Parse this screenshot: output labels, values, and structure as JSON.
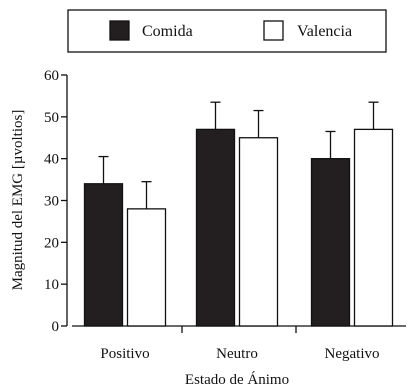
{
  "chart_data": {
    "type": "bar",
    "title": "",
    "xlabel": "Estado de Ánimo",
    "ylabel": "Magnitud del EMG [µvoltios]",
    "categories": [
      "Positivo",
      "Neutro",
      "Negativo"
    ],
    "ylim": [
      0,
      60
    ],
    "yticks": [
      0,
      10,
      20,
      30,
      40,
      50,
      60
    ],
    "grid": false,
    "legend_position": "top",
    "series": [
      {
        "name": "Comida",
        "color": "#231f20",
        "values": [
          34,
          47,
          40
        ],
        "error": [
          6.5,
          6.5,
          6.5
        ]
      },
      {
        "name": "Valencia",
        "color": "#ffffff",
        "values": [
          28,
          45,
          47
        ],
        "error": [
          6.5,
          6.5,
          6.5
        ]
      }
    ]
  }
}
